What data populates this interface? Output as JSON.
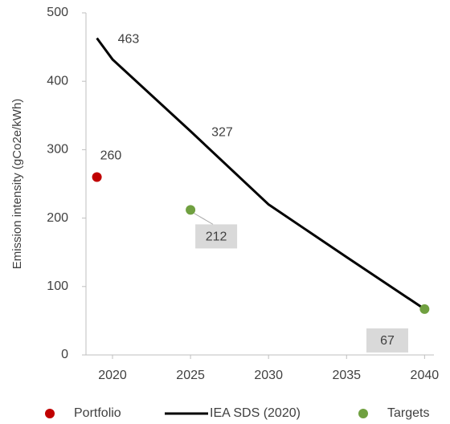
{
  "chart_data": {
    "type": "line",
    "y_label": "Emission intensity (gCo2e/kWh)",
    "xlim": [
      2018.3,
      2040.6
    ],
    "xticks": [
      2020,
      2025,
      2030,
      2035,
      2040
    ],
    "ylim": [
      0,
      500
    ],
    "yticks": [
      0,
      100,
      200,
      300,
      400,
      500
    ],
    "grid": false,
    "legend": "bottom",
    "series": [
      {
        "name": "Portfolio",
        "type": "scatter",
        "color": "#c00000",
        "x": [
          2019
        ],
        "values": [
          260
        ],
        "value_labels": [
          "260"
        ]
      },
      {
        "name": "IEA SDS (2020)",
        "type": "line",
        "color": "#000000",
        "x": [
          2019,
          2020,
          2025,
          2030,
          2035,
          2040
        ],
        "values": [
          463,
          432,
          327,
          220,
          143,
          67
        ],
        "value_labels": [
          "463",
          null,
          "327",
          null,
          null,
          null
        ]
      },
      {
        "name": "Targets",
        "type": "scatter",
        "color": "#70a040",
        "x": [
          2025,
          2040
        ],
        "values": [
          212,
          67
        ],
        "value_labels": [
          "212",
          "67"
        ]
      }
    ]
  }
}
